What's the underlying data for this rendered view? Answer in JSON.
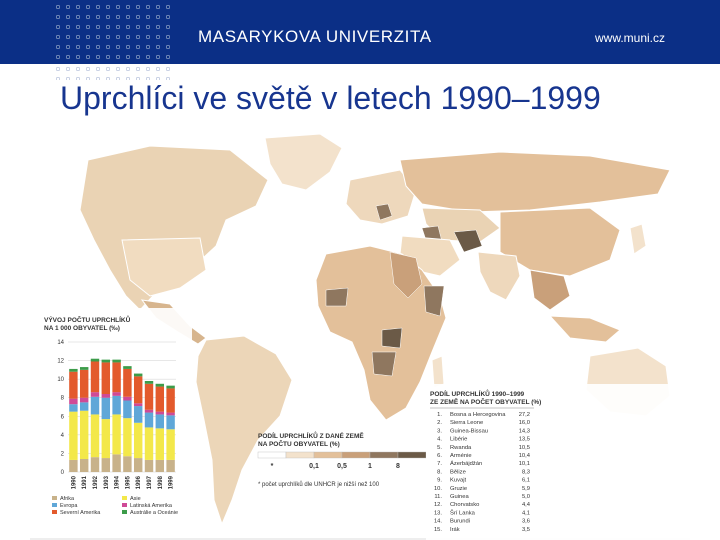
{
  "header": {
    "university": "MASARYKOVA UNIVERZITA",
    "website": "www.muni.cz"
  },
  "slide": {
    "title": "Uprchlíci ve světě v letech 1990–1999"
  },
  "map_legend": {
    "title_line1": "PODÍL UPRCHLÍKŮ Z DANÉ ZEMĚ",
    "title_line2": "NA POČTU OBYVATEL (%)",
    "classes": [
      "*",
      "0,1",
      "0,5",
      "1",
      "8"
    ],
    "colors": [
      "#ffffff",
      "#f3e2cc",
      "#e3c09a",
      "#c9a07a",
      "#8f775f",
      "#6b5a47"
    ],
    "footnote": "* počet uprchlíků dle UNHCR je nižší než 100"
  },
  "chart_data": {
    "type": "bar",
    "title": "VÝVOJ POČTU UPRCHLÍKŮ NA 1 000 OBYVATEL (‰)",
    "categories": [
      "1990",
      "1991",
      "1992",
      "1993",
      "1994",
      "1995",
      "1996",
      "1997",
      "1998",
      "1999"
    ],
    "ylim": [
      0,
      14
    ],
    "yticks": [
      "0",
      "2",
      "4",
      "6",
      "8",
      "10",
      "12",
      "14"
    ],
    "series": [
      {
        "name": "Afrika",
        "color": "#c8b28a",
        "values": [
          1.3,
          1.4,
          1.6,
          1.5,
          1.9,
          1.7,
          1.5,
          1.3,
          1.3,
          1.3
        ]
      },
      {
        "name": "Asie",
        "color": "#f3e84a",
        "values": [
          5.2,
          5.2,
          4.6,
          4.2,
          4.3,
          4.1,
          3.8,
          3.5,
          3.4,
          3.3
        ]
      },
      {
        "name": "Evropa",
        "color": "#5fa7d8",
        "values": [
          0.8,
          0.9,
          1.9,
          2.3,
          2.0,
          1.9,
          1.8,
          1.6,
          1.5,
          1.5
        ]
      },
      {
        "name": "Latinská Amerika",
        "color": "#cf4a96",
        "values": [
          0.6,
          0.5,
          0.5,
          0.4,
          0.4,
          0.4,
          0.3,
          0.3,
          0.3,
          0.3
        ]
      },
      {
        "name": "Severní Amerika",
        "color": "#e35a2c",
        "values": [
          2.9,
          3.0,
          3.3,
          3.4,
          3.2,
          3.0,
          2.9,
          2.8,
          2.7,
          2.6
        ]
      },
      {
        "name": "Austrálie a Oceánie",
        "color": "#3c9c4a",
        "values": [
          0.3,
          0.3,
          0.3,
          0.3,
          0.3,
          0.3,
          0.3,
          0.3,
          0.3,
          0.3
        ]
      }
    ]
  },
  "ranking": {
    "title_line1": "PODÍL UPRCHLÍKŮ 1990–1999",
    "title_line2": "ZE ZEMĚ NA POČET OBYVATEL (%)",
    "rows": [
      {
        "rank": "1.",
        "country": "Bosna a Hercegovina",
        "value": "27,2"
      },
      {
        "rank": "2.",
        "country": "Sierra Leone",
        "value": "16,0"
      },
      {
        "rank": "3.",
        "country": "Guinea-Bissau",
        "value": "14,3"
      },
      {
        "rank": "4.",
        "country": "Libérie",
        "value": "13,5"
      },
      {
        "rank": "5.",
        "country": "Rwanda",
        "value": "10,5"
      },
      {
        "rank": "6.",
        "country": "Arménie",
        "value": "10,4"
      },
      {
        "rank": "7.",
        "country": "Ázerbájdžán",
        "value": "10,1"
      },
      {
        "rank": "8.",
        "country": "Bělize",
        "value": "8,3"
      },
      {
        "rank": "9.",
        "country": "Kuvajt",
        "value": "6,1"
      },
      {
        "rank": "10.",
        "country": "Gruzie",
        "value": "5,9"
      },
      {
        "rank": "11.",
        "country": "Guinea",
        "value": "5,0"
      },
      {
        "rank": "12.",
        "country": "Chorvatsko",
        "value": "4,4"
      },
      {
        "rank": "13.",
        "country": "Šrí Lanka",
        "value": "4,1"
      },
      {
        "rank": "14.",
        "country": "Burundi",
        "value": "3,6"
      },
      {
        "rank": "15.",
        "country": "Irák",
        "value": "3,5"
      }
    ]
  }
}
